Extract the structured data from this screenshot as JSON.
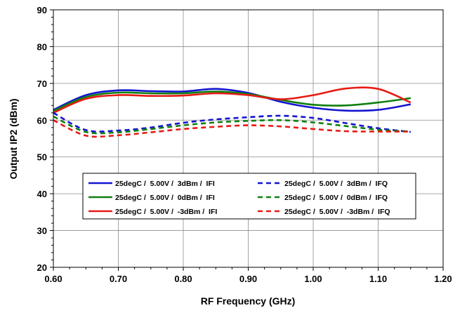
{
  "chart_data": {
    "type": "line",
    "xlabel": "RF Frequency (GHz)",
    "ylabel": "Output IP2 (dBm)",
    "xlim": [
      0.6,
      1.2
    ],
    "ylim": [
      20,
      90
    ],
    "x_ticks": [
      "0.60",
      "0.70",
      "0.80",
      "0.90",
      "1.00",
      "1.10",
      "1.20"
    ],
    "y_ticks": [
      "20",
      "30",
      "40",
      "50",
      "60",
      "70",
      "80",
      "90"
    ],
    "grid": true,
    "legend_position": "lower-center",
    "series": [
      {
        "name": "25degC /  5.00V /  3dBm /  IFI",
        "color": "#1414d2",
        "style": "solid",
        "x": [
          0.6,
          0.65,
          0.7,
          0.75,
          0.8,
          0.85,
          0.9,
          0.95,
          1.0,
          1.05,
          1.1,
          1.15
        ],
        "y": [
          62.8,
          66.8,
          68.1,
          67.9,
          67.8,
          68.5,
          67.4,
          65.0,
          63.4,
          62.6,
          62.8,
          64.3
        ]
      },
      {
        "name": "25degC /  5.00V /  0dBm /  IFI",
        "color": "#108010",
        "style": "solid",
        "x": [
          0.6,
          0.65,
          0.7,
          0.75,
          0.8,
          0.85,
          0.9,
          0.95,
          1.0,
          1.05,
          1.1,
          1.15
        ],
        "y": [
          62.5,
          66.3,
          67.5,
          67.3,
          67.3,
          67.8,
          67.1,
          65.5,
          64.2,
          64.0,
          64.8,
          66.0
        ]
      },
      {
        "name": "25degC /  5.00V /  -3dBm /  IFI",
        "color": "#e81a14",
        "style": "solid",
        "x": [
          0.6,
          0.65,
          0.7,
          0.75,
          0.8,
          0.85,
          0.9,
          0.95,
          1.0,
          1.05,
          1.1,
          1.15
        ],
        "y": [
          62.0,
          65.8,
          66.8,
          66.6,
          66.7,
          67.3,
          66.8,
          65.7,
          66.8,
          68.6,
          68.5,
          64.8
        ]
      },
      {
        "name": "25degC /  5.00V /  3dBm /  IFQ",
        "color": "#1414d2",
        "style": "dashed",
        "x": [
          0.6,
          0.65,
          0.7,
          0.75,
          0.8,
          0.85,
          0.9,
          0.95,
          1.0,
          1.05,
          1.1,
          1.15
        ],
        "y": [
          62.0,
          57.3,
          57.2,
          58.0,
          59.3,
          60.2,
          60.8,
          61.2,
          60.6,
          59.2,
          57.8,
          56.8
        ]
      },
      {
        "name": "25degC /  5.00V /  0dBm /  IFQ",
        "color": "#108010",
        "style": "dashed",
        "x": [
          0.6,
          0.65,
          0.7,
          0.75,
          0.8,
          0.85,
          0.9,
          0.95,
          1.0,
          1.05,
          1.1,
          1.15
        ],
        "y": [
          61.0,
          56.8,
          56.7,
          57.6,
          58.6,
          59.4,
          59.8,
          60.0,
          59.4,
          58.4,
          57.4,
          56.9
        ]
      },
      {
        "name": "25degC /  5.00V /  -3dBm /  IFQ",
        "color": "#e81a14",
        "style": "dashed",
        "x": [
          0.6,
          0.65,
          0.7,
          0.75,
          0.8,
          0.85,
          0.9,
          0.95,
          1.0,
          1.05,
          1.1,
          1.15
        ],
        "y": [
          60.0,
          55.8,
          55.9,
          56.7,
          57.6,
          58.2,
          58.6,
          58.3,
          57.6,
          57.0,
          56.9,
          56.9
        ]
      }
    ]
  }
}
